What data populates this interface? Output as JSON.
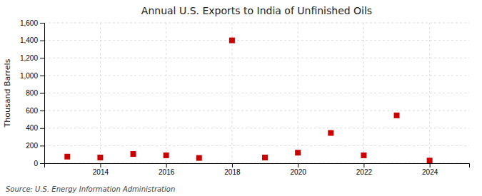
{
  "chart_data": {
    "type": "scatter",
    "title": "Annual U.S. Exports to India of Unfinished Oils",
    "ylabel": "Thousand Barrels",
    "source": "Source: U.S. Energy Information Administration",
    "x": [
      2013,
      2014,
      2015,
      2016,
      2017,
      2018,
      2019,
      2020,
      2021,
      2022,
      2023,
      2024
    ],
    "values": [
      75,
      65,
      105,
      90,
      60,
      1400,
      65,
      120,
      345,
      90,
      545,
      30
    ],
    "xlim": [
      2012.3,
      2025.2
    ],
    "xticks": [
      2014,
      2016,
      2018,
      2020,
      2022,
      2024
    ],
    "ylim": [
      0,
      1600
    ],
    "yticks": [
      0,
      200,
      400,
      600,
      800,
      {
        "value": 1000,
        "label": "1,000"
      },
      {
        "value": 1200,
        "label": "1,200"
      },
      {
        "value": 1400,
        "label": "1,400"
      },
      {
        "value": 1600,
        "label": "1,600"
      }
    ],
    "color": "#cc0000",
    "marker": "square",
    "grid": true
  }
}
